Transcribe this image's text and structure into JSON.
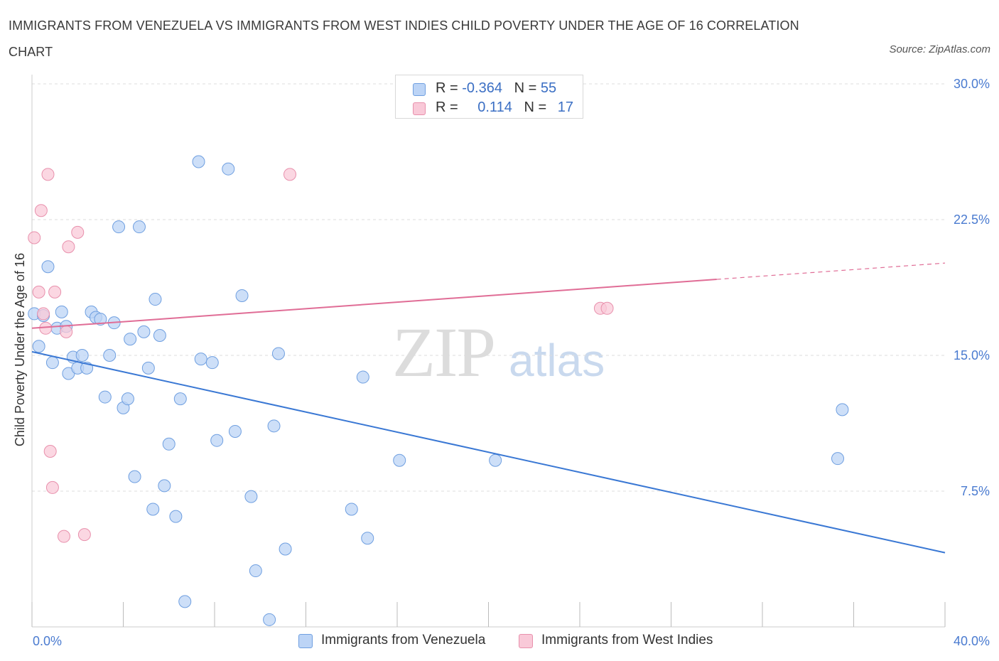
{
  "header": {
    "title": "IMMIGRANTS FROM VENEZUELA VS IMMIGRANTS FROM WEST INDIES CHILD POVERTY UNDER THE AGE OF 16 CORRELATION CHART",
    "source": "Source: ZipAtlas.com"
  },
  "watermark": {
    "part1": "ZIP",
    "part2": "atlas"
  },
  "legend": {
    "rows": [
      {
        "r_label": "R = ",
        "r_value": "-0.364",
        "n_label": "N = ",
        "n_value": "55"
      },
      {
        "r_label": "R = ",
        "r_value": "0.114",
        "n_label": "N = ",
        "n_value": "17"
      }
    ]
  },
  "colors": {
    "venezuela_fill": "#bcd4f6",
    "venezuela_stroke": "#6f9fe0",
    "venezuela_line": "#3a78d4",
    "westindies_fill": "#f9c9d8",
    "westindies_stroke": "#e890ac",
    "westindies_line": "#e06d96",
    "axis_text": "#4a7bd0",
    "grid": "#dddddd"
  },
  "chart_data": {
    "type": "scatter",
    "title": "IMMIGRANTS FROM VENEZUELA VS IMMIGRANTS FROM WEST INDIES CHILD POVERTY UNDER THE AGE OF 16 CORRELATION CHART",
    "xlabel": "",
    "ylabel": "Child Poverty Under the Age of 16",
    "xlim": [
      0,
      40
    ],
    "ylim": [
      0,
      30
    ],
    "x_tick_labels": [
      "0.0%",
      "40.0%"
    ],
    "y_ticks": [
      7.5,
      15.0,
      22.5,
      30.0
    ],
    "y_tick_labels": [
      "7.5%",
      "15.0%",
      "22.5%",
      "30.0%"
    ],
    "grid": true,
    "legend_position": "bottom",
    "series": [
      {
        "name": "Immigrants from Venezuela",
        "r": -0.364,
        "n": 55,
        "trend": {
          "x": [
            0,
            40
          ],
          "y": [
            15.2,
            4.1
          ]
        },
        "points": [
          [
            0.1,
            17.3
          ],
          [
            0.3,
            15.5
          ],
          [
            0.5,
            17.2
          ],
          [
            0.7,
            19.9
          ],
          [
            0.9,
            14.6
          ],
          [
            1.1,
            16.5
          ],
          [
            1.3,
            17.4
          ],
          [
            1.5,
            16.6
          ],
          [
            1.6,
            14.0
          ],
          [
            1.8,
            14.9
          ],
          [
            2.0,
            14.3
          ],
          [
            2.2,
            15.0
          ],
          [
            2.4,
            14.3
          ],
          [
            2.6,
            17.4
          ],
          [
            2.8,
            17.1
          ],
          [
            3.0,
            17.0
          ],
          [
            3.2,
            12.7
          ],
          [
            3.4,
            15.0
          ],
          [
            3.6,
            16.8
          ],
          [
            3.8,
            22.1
          ],
          [
            4.0,
            12.1
          ],
          [
            4.2,
            12.6
          ],
          [
            4.3,
            15.9
          ],
          [
            4.5,
            8.3
          ],
          [
            4.7,
            22.1
          ],
          [
            4.9,
            16.3
          ],
          [
            5.1,
            14.3
          ],
          [
            5.3,
            6.5
          ],
          [
            5.4,
            18.1
          ],
          [
            5.6,
            16.1
          ],
          [
            5.8,
            7.8
          ],
          [
            6.0,
            10.1
          ],
          [
            6.3,
            6.1
          ],
          [
            6.5,
            12.6
          ],
          [
            6.7,
            1.4
          ],
          [
            7.3,
            25.7
          ],
          [
            7.4,
            14.8
          ],
          [
            7.9,
            14.6
          ],
          [
            8.1,
            10.3
          ],
          [
            8.6,
            25.3
          ],
          [
            8.9,
            10.8
          ],
          [
            9.2,
            18.3
          ],
          [
            9.6,
            7.2
          ],
          [
            9.8,
            3.1
          ],
          [
            10.4,
            0.4
          ],
          [
            10.6,
            11.1
          ],
          [
            10.8,
            15.1
          ],
          [
            11.1,
            4.3
          ],
          [
            14.0,
            6.5
          ],
          [
            14.5,
            13.8
          ],
          [
            14.7,
            4.9
          ],
          [
            16.1,
            9.2
          ],
          [
            20.3,
            9.2
          ],
          [
            35.3,
            9.3
          ],
          [
            35.5,
            12.0
          ]
        ]
      },
      {
        "name": "Immigrants from West Indies",
        "r": 0.114,
        "n": 17,
        "trend": {
          "x": [
            0,
            30
          ],
          "y": [
            16.5,
            19.2
          ],
          "dashed_to": [
            40,
            20.1
          ]
        },
        "points": [
          [
            0.1,
            21.5
          ],
          [
            0.3,
            18.5
          ],
          [
            0.4,
            23.0
          ],
          [
            0.5,
            17.3
          ],
          [
            0.6,
            16.5
          ],
          [
            0.7,
            25.0
          ],
          [
            0.8,
            9.7
          ],
          [
            0.9,
            7.7
          ],
          [
            1.0,
            18.5
          ],
          [
            1.5,
            16.3
          ],
          [
            1.4,
            5.0
          ],
          [
            1.6,
            21.0
          ],
          [
            2.0,
            21.8
          ],
          [
            2.3,
            5.1
          ],
          [
            11.3,
            25.0
          ],
          [
            24.9,
            17.6
          ],
          [
            25.2,
            17.6
          ]
        ]
      }
    ]
  },
  "bottom_legend": {
    "items": [
      {
        "label": "Immigrants from Venezuela"
      },
      {
        "label": "Immigrants from West Indies"
      }
    ]
  }
}
